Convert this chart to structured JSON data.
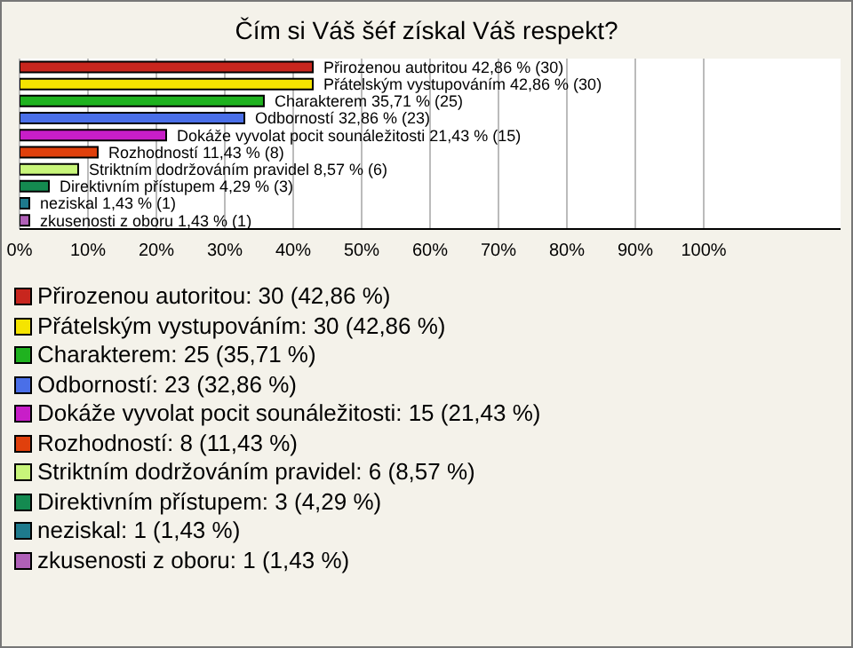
{
  "chart_data": {
    "type": "bar",
    "orientation": "horizontal",
    "title": "Čím si Váš šéf získal Váš respekt?",
    "categories": [
      "Přirozenou autoritou",
      "Přátelským vystupováním",
      "Charakterem",
      "Odborností",
      "Dokáže vyvolat pocit sounáležitosti",
      "Rozhodností",
      "Striktním dodržováním pravidel",
      "Direktivním přístupem",
      "neziskal",
      "zkusenosti z oboru"
    ],
    "values": [
      42.86,
      42.86,
      35.71,
      32.86,
      21.43,
      11.43,
      8.57,
      4.29,
      1.43,
      1.43
    ],
    "value_labels": [
      "42,86 % (30)",
      "42,86 % (30)",
      "35,71 % (25)",
      "32,86 % (23)",
      "21,43 % (15)",
      "11,43 % (8)",
      "8,57 % (6)",
      "4,29 % (3)",
      "1,43 % (1)",
      "1,43 % (1)"
    ],
    "colors": [
      "#c8261e",
      "#f5e400",
      "#1fb21f",
      "#4a6fe8",
      "#c81ec8",
      "#e0400c",
      "#c8f57a",
      "#148a50",
      "#1e7a8c",
      "#b060b8"
    ],
    "xlim": [
      0,
      120
    ],
    "xticks": [
      {
        "value": 0,
        "label": "0%"
      },
      {
        "value": 10,
        "label": "10%"
      },
      {
        "value": 20,
        "label": "20%"
      },
      {
        "value": 30,
        "label": "30%"
      },
      {
        "value": 40,
        "label": "40%"
      },
      {
        "value": 50,
        "label": "50%"
      },
      {
        "value": 60,
        "label": "60%"
      },
      {
        "value": 70,
        "label": "70%"
      },
      {
        "value": 80,
        "label": "80%"
      },
      {
        "value": 90,
        "label": "90%"
      },
      {
        "value": 100,
        "label": "100%"
      }
    ],
    "grid": "x",
    "annotations": [
      "Přirozenou autoritou: 30 (42,86 %)",
      "Přátelským vystupováním: 30 (42,86 %)",
      "Charakterem: 25 (35,71 %)",
      "Odborností: 23 (32,86 %)",
      "Dokáže vyvolat pocit sounáležitosti: 15 (21,43 %)",
      "Rozhodností: 8 (11,43 %)",
      "Striktním dodržováním pravidel: 6 (8,57 %)",
      "Direktivním přístupem: 3 (4,29 %)",
      "neziskal: 1 (1,43 %)",
      "zkusenosti z oboru: 1 (1,43 %)"
    ]
  }
}
